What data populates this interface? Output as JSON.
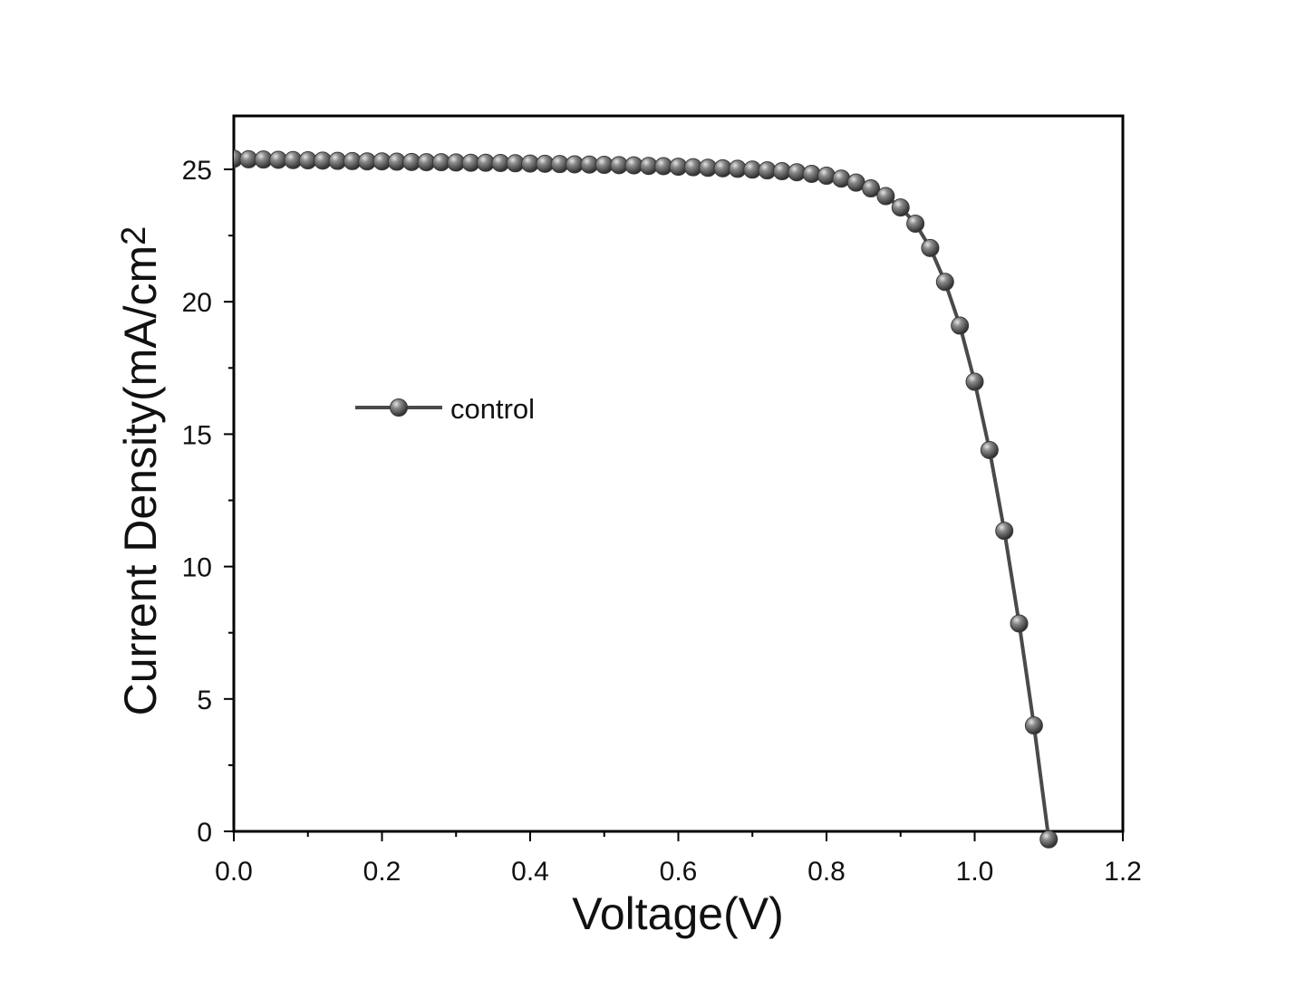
{
  "chart_data": {
    "type": "line",
    "xlabel": "Voltage(V)",
    "ylabel": "Current Density(mA/cm",
    "ylabel_superscript": "2",
    "xlim": [
      0,
      1.2
    ],
    "ylim": [
      0,
      27
    ],
    "x_ticks": [
      "0.0",
      "0.2",
      "0.4",
      "0.6",
      "0.8",
      "1.0",
      "1.2"
    ],
    "y_ticks": [
      "0",
      "5",
      "10",
      "15",
      "20",
      "25"
    ],
    "x_tick_values": [
      0,
      0.2,
      0.4,
      0.6,
      0.8,
      1.0,
      1.2
    ],
    "y_tick_values": [
      0,
      5,
      10,
      15,
      20,
      25
    ],
    "grid": false,
    "legend_position": "middle-left",
    "colors": {
      "line": "#4a4a4a",
      "marker": "#6e6e6e",
      "marker_edge": "#3a3a3a",
      "axis": "#000000"
    },
    "series": [
      {
        "name": "control",
        "x": [
          0.0,
          0.02,
          0.04,
          0.06,
          0.08,
          0.1,
          0.12,
          0.14,
          0.16,
          0.18,
          0.2,
          0.22,
          0.24,
          0.26,
          0.28,
          0.3,
          0.32,
          0.34,
          0.36,
          0.38,
          0.4,
          0.42,
          0.44,
          0.46,
          0.48,
          0.5,
          0.52,
          0.54,
          0.56,
          0.58,
          0.6,
          0.62,
          0.64,
          0.66,
          0.68,
          0.7,
          0.72,
          0.74,
          0.76,
          0.78,
          0.8,
          0.82,
          0.84,
          0.86,
          0.88,
          0.9,
          0.92,
          0.94,
          0.96,
          0.98,
          1.0,
          1.02,
          1.04,
          1.06,
          1.08,
          1.1
        ],
        "y": [
          25.4,
          25.38,
          25.37,
          25.36,
          25.35,
          25.34,
          25.33,
          25.32,
          25.31,
          25.3,
          25.3,
          25.29,
          25.28,
          25.27,
          25.27,
          25.26,
          25.25,
          25.25,
          25.24,
          25.23,
          25.22,
          25.21,
          25.2,
          25.19,
          25.18,
          25.17,
          25.16,
          25.15,
          25.13,
          25.12,
          25.1,
          25.08,
          25.06,
          25.04,
          25.02,
          24.99,
          24.96,
          24.93,
          24.89,
          24.83,
          24.76,
          24.65,
          24.5,
          24.28,
          23.99,
          23.56,
          22.95,
          22.03,
          20.75,
          19.1,
          16.98,
          14.4,
          11.35,
          7.85,
          4.0,
          -0.3
        ]
      }
    ]
  }
}
